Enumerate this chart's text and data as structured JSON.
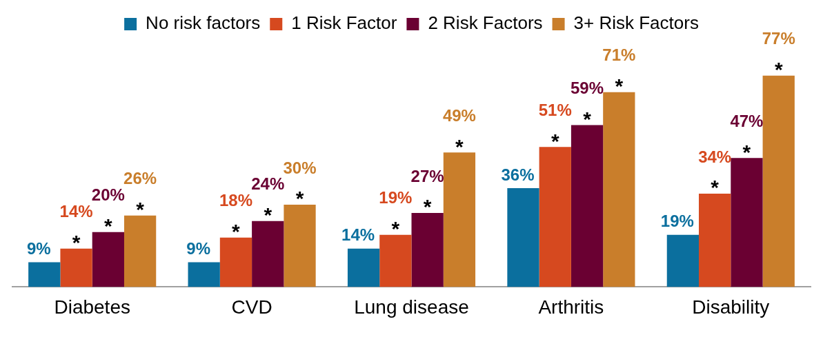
{
  "chart_data": {
    "type": "bar",
    "categories": [
      "Diabetes",
      "CVD",
      "Lung disease",
      "Arthritis",
      "Disability"
    ],
    "series": [
      {
        "name": "No risk factors",
        "color": "#0b6f9e",
        "values": [
          9,
          9,
          14,
          36,
          19
        ],
        "value_labels": [
          "9%",
          "9%",
          "14%",
          "36%",
          "19%"
        ]
      },
      {
        "name": "1 Risk Factor",
        "color": "#d6491f",
        "values": [
          14,
          18,
          19,
          51,
          34
        ],
        "value_labels": [
          "14%",
          "18%",
          "19%",
          "51%",
          "34%"
        ]
      },
      {
        "name": "2 Risk Factors",
        "color": "#6a0032",
        "values": [
          20,
          24,
          27,
          59,
          47
        ],
        "value_labels": [
          "20%",
          "24%",
          "27%",
          "59%",
          "47%"
        ]
      },
      {
        "name": "3+ Risk Factors",
        "color": "#c97e2b",
        "values": [
          26,
          30,
          49,
          71,
          77
        ],
        "value_labels": [
          "26%",
          "30%",
          "49%",
          "71%",
          "77%"
        ]
      }
    ],
    "legend": "top",
    "grid": false,
    "annotations": [
      "*",
      "*",
      "*",
      "*",
      "*",
      "*",
      "*",
      "*",
      "*",
      "*",
      "*",
      "*",
      "*",
      "*",
      "*"
    ]
  }
}
